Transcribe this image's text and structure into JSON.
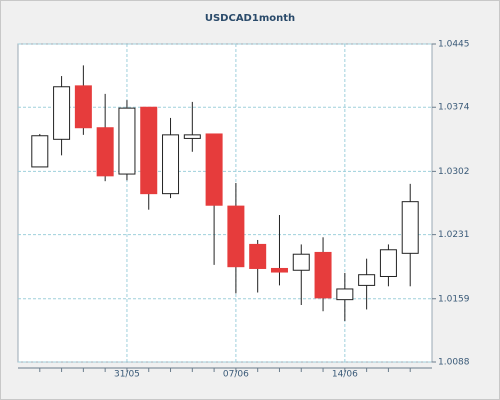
{
  "chart_data": {
    "type": "candlestick",
    "title": "USDCAD1month",
    "categories": [
      null,
      null,
      null,
      null,
      "31/05",
      null,
      null,
      null,
      null,
      "07/06",
      null,
      null,
      null,
      null,
      "14/06",
      null,
      null,
      null
    ],
    "open": [
      1.0307,
      1.0338,
      1.0398,
      1.0351,
      1.0299,
      1.0374,
      1.0277,
      1.0339,
      1.0344,
      1.0263,
      1.022,
      1.0193,
      1.0191,
      1.0211,
      1.0158,
      1.0174,
      1.0184,
      1.021
    ],
    "high": [
      1.0344,
      1.0409,
      1.0421,
      1.0389,
      1.0382,
      1.0374,
      1.0362,
      1.038,
      1.0344,
      1.0289,
      1.0225,
      1.0253,
      1.022,
      1.0228,
      1.0188,
      1.0204,
      1.022,
      1.0288
    ],
    "low": [
      1.0307,
      1.032,
      1.0343,
      1.0291,
      1.0292,
      1.0259,
      1.0272,
      1.0324,
      1.0197,
      1.0165,
      1.0166,
      1.0174,
      1.0152,
      1.0145,
      1.0134,
      1.0147,
      1.0173,
      1.0173
    ],
    "close": [
      1.0342,
      1.0397,
      1.0351,
      1.0297,
      1.0373,
      1.0277,
      1.0343,
      1.0343,
      1.0264,
      1.0195,
      1.0193,
      1.0189,
      1.0209,
      1.016,
      1.017,
      1.0186,
      1.0214,
      1.0268
    ],
    "up_color": "#ffffff",
    "down_color": "#e63c3c",
    "ylim": [
      1.0088,
      1.0445
    ],
    "yticks": [
      1.0088,
      1.0159,
      1.0231,
      1.0302,
      1.0374,
      1.0445
    ],
    "grid": true
  }
}
